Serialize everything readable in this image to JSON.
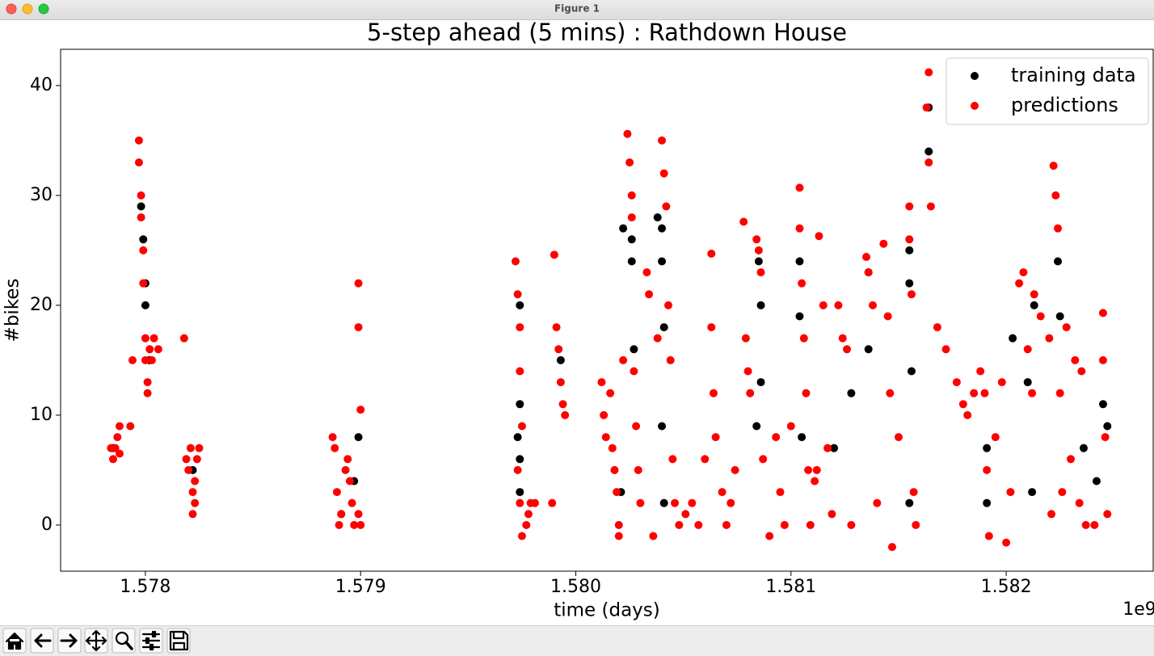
{
  "window_title": "Figure 1",
  "chart_data": {
    "type": "scatter",
    "title": "5-step ahead (5 mins) : Rathdown House",
    "x_label": "time (days)",
    "y_label": "#bikes",
    "x_offset_label": "1e9",
    "xlim": [
      1.577606,
      1.582683
    ],
    "ylim": [
      -4.2,
      43.3
    ],
    "xticks": [
      1.578,
      1.579,
      {
        "value": 1.58,
        "label": "1.580"
      },
      1.581,
      1.582
    ],
    "yticks": [
      0,
      10,
      20,
      30,
      40
    ],
    "grid": false,
    "legend": "upper right",
    "series": [
      {
        "name": "training data",
        "color": "#000000",
        "x": [
          1.57785,
          1.57798,
          1.57799,
          1.578,
          1.578,
          1.57802,
          1.57822,
          1.57899,
          1.57897,
          1.57891,
          1.57974,
          1.57974,
          1.57973,
          1.57974,
          1.57974,
          1.57993,
          1.58022,
          1.58026,
          1.58026,
          1.58027,
          1.58021,
          1.58038,
          1.5804,
          1.5804,
          1.58041,
          1.5804,
          1.58041,
          1.58085,
          1.58086,
          1.58086,
          1.58084,
          1.58104,
          1.58104,
          1.58105,
          1.5812,
          1.58128,
          1.58136,
          1.58136,
          1.58155,
          1.58155,
          1.58156,
          1.58155,
          1.58164,
          1.58164,
          1.58191,
          1.58191,
          1.58203,
          1.5821,
          1.58212,
          1.58213,
          1.58224,
          1.58225,
          1.58236,
          1.58242,
          1.58245,
          1.58247
        ],
        "values": [
          7,
          29,
          26,
          22,
          20,
          15,
          5,
          8,
          4,
          1,
          20,
          11,
          8,
          6,
          3,
          15,
          27,
          26,
          24,
          16,
          3,
          28,
          27,
          24,
          18,
          9,
          2,
          24,
          20,
          13,
          9,
          24,
          19,
          8,
          7,
          12,
          23,
          16,
          25,
          22,
          14,
          2,
          34,
          38,
          2,
          7,
          17,
          13,
          3,
          20,
          24,
          19,
          7,
          4,
          11,
          9
        ]
      },
      {
        "name": "predictions",
        "color": "#ff0000",
        "x": [
          1.57784,
          1.57785,
          1.57786,
          1.57787,
          1.57788,
          1.57788,
          1.57797,
          1.57797,
          1.57798,
          1.57798,
          1.57799,
          1.57799,
          1.578,
          1.578,
          1.57801,
          1.57801,
          1.57802,
          1.57803,
          1.57804,
          1.57806,
          1.57794,
          1.57793,
          1.57818,
          1.57819,
          1.5782,
          1.57821,
          1.57822,
          1.57822,
          1.57823,
          1.57824,
          1.57825,
          1.57823,
          1.57887,
          1.57888,
          1.57889,
          1.5789,
          1.57891,
          1.57893,
          1.57894,
          1.57895,
          1.57896,
          1.57897,
          1.57899,
          1.57899,
          1.579,
          1.57899,
          1.579,
          1.57972,
          1.57973,
          1.57974,
          1.57974,
          1.57973,
          1.57975,
          1.57974,
          1.57975,
          1.57977,
          1.57978,
          1.57979,
          1.57981,
          1.5799,
          1.57991,
          1.57992,
          1.57993,
          1.57994,
          1.57995,
          1.57989,
          1.58012,
          1.58013,
          1.58014,
          1.58016,
          1.58017,
          1.58018,
          1.58019,
          1.5802,
          1.5802,
          1.58022,
          1.58024,
          1.58025,
          1.58026,
          1.58026,
          1.58027,
          1.58028,
          1.58029,
          1.5803,
          1.58033,
          1.58034,
          1.58036,
          1.58038,
          1.5804,
          1.58041,
          1.58042,
          1.58043,
          1.58044,
          1.58045,
          1.58046,
          1.58048,
          1.58051,
          1.58054,
          1.58057,
          1.5806,
          1.58063,
          1.58063,
          1.58064,
          1.58065,
          1.58068,
          1.5807,
          1.58072,
          1.58074,
          1.58078,
          1.58079,
          1.5808,
          1.58081,
          1.58084,
          1.58085,
          1.58086,
          1.58087,
          1.5809,
          1.58093,
          1.58095,
          1.58097,
          1.581,
          1.58104,
          1.58104,
          1.58105,
          1.58106,
          1.58107,
          1.58108,
          1.58109,
          1.58111,
          1.58112,
          1.58113,
          1.58115,
          1.58117,
          1.58119,
          1.58122,
          1.58124,
          1.58126,
          1.58128,
          1.58135,
          1.58136,
          1.58138,
          1.5814,
          1.58143,
          1.58145,
          1.58146,
          1.58147,
          1.5815,
          1.58155,
          1.58155,
          1.58156,
          1.58157,
          1.58158,
          1.58163,
          1.58164,
          1.58164,
          1.58165,
          1.58168,
          1.58172,
          1.58177,
          1.5818,
          1.58182,
          1.58185,
          1.58188,
          1.5819,
          1.58191,
          1.58192,
          1.58195,
          1.58198,
          1.582,
          1.58202,
          1.58206,
          1.58208,
          1.5821,
          1.58212,
          1.58213,
          1.58216,
          1.5822,
          1.58221,
          1.58222,
          1.58223,
          1.58224,
          1.58225,
          1.58226,
          1.58228,
          1.5823,
          1.58232,
          1.58234,
          1.58235,
          1.58237,
          1.58241,
          1.58245,
          1.58245,
          1.58246,
          1.58247
        ],
        "values": [
          7,
          6,
          7,
          8,
          9,
          6.5,
          35,
          33,
          30,
          28,
          25,
          22,
          17,
          15,
          13,
          12,
          16,
          15,
          17,
          16,
          15,
          9,
          17,
          6,
          5,
          7,
          3,
          1,
          4,
          6,
          7,
          2,
          8,
          7,
          3,
          0,
          1,
          5,
          6,
          4,
          2,
          0,
          22,
          18,
          10.5,
          1,
          0,
          24,
          21,
          18,
          14,
          5,
          9,
          2,
          -1,
          0,
          1,
          2,
          2,
          24.6,
          18,
          16,
          13,
          11,
          10,
          2,
          13,
          10,
          8,
          12,
          7,
          5,
          3,
          0,
          -1,
          15,
          35.6,
          33,
          30,
          28,
          14,
          9,
          5,
          2,
          23,
          21,
          -1,
          17,
          35,
          32,
          29,
          20,
          15,
          6,
          2,
          0,
          1,
          2,
          0,
          6,
          24.7,
          18,
          12,
          8,
          3,
          0,
          2,
          5,
          27.6,
          17,
          14,
          12,
          26,
          25,
          23,
          6,
          -1,
          8,
          3,
          0,
          9,
          30.7,
          27,
          22,
          17,
          12,
          5,
          0,
          4,
          5,
          26.3,
          20,
          7,
          1,
          20,
          17,
          16,
          0,
          24.4,
          23,
          20,
          2,
          25.6,
          19,
          12,
          -2,
          8,
          29,
          26,
          21,
          3,
          0,
          38,
          41.2,
          33,
          29,
          18,
          16,
          13,
          11,
          10,
          12,
          14,
          12,
          5,
          -1,
          8,
          13,
          -1.6,
          3,
          22,
          23,
          16,
          12,
          21,
          19,
          17,
          1,
          32.7,
          30,
          27,
          12,
          3,
          18,
          6,
          15,
          2,
          14,
          0,
          0,
          19.3,
          15,
          8,
          1
        ]
      }
    ]
  }
}
